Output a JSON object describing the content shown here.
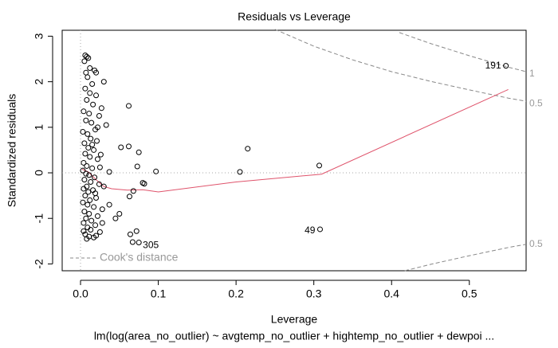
{
  "chart_data": {
    "type": "scatter",
    "title": "Residuals vs Leverage",
    "x_label": "Leverage",
    "y_label": "Standardized residuals",
    "subtitle": "lm(log(area_no_outlier) ~ avgtemp_no_outlier + hightemp_no_outlier + dewpoi ...",
    "xlim": [
      -0.0236,
      0.573
    ],
    "ylim": [
      -2.15,
      3.13
    ],
    "xticks": [
      {
        "value": 0,
        "label": "0.0"
      },
      0.1,
      0.2,
      0.3,
      0.4,
      0.5
    ],
    "yticks": [
      -2,
      -1,
      0,
      1,
      2,
      3
    ],
    "hline": 0,
    "vline": 0,
    "series": [
      {
        "color": "#000000",
        "x": [
          0.006,
          0.008,
          0.01,
          0.005,
          0.012,
          0.007,
          0.018,
          0.009,
          0.015,
          0.006,
          0.012,
          0.02,
          0.008,
          0.016,
          0.004,
          0.011,
          0.024,
          0.007,
          0.014,
          0.019,
          0.003,
          0.009,
          0.013,
          0.021,
          0.005,
          0.01,
          0.017,
          0.006,
          0.012,
          0.022,
          0.004,
          0.008,
          0.015,
          0.025,
          0.003,
          0.007,
          0.011,
          0.018,
          0.005,
          0.013,
          0.024,
          0.008,
          0.004,
          0.016,
          0.01,
          0.006,
          0.02,
          0.012,
          0.003,
          0.009,
          0.017,
          0.028,
          0.005,
          0.011,
          0.022,
          0.007,
          0.014,
          0.004,
          0.019,
          0.009,
          0.013,
          0.025,
          0.006,
          0.011,
          0.017,
          0.008,
          0.02,
          0.004,
          0.015,
          0.019,
          0.026,
          0.03,
          0.033,
          0.028,
          0.062,
          0.052,
          0.062,
          0.075,
          0.073,
          0.097,
          0.205,
          0.215,
          0.307,
          0.08,
          0.082,
          0.063,
          0.068,
          0.072,
          0.064,
          0.067,
          0.05,
          0.045,
          0.037,
          0.037,
          0.03,
          0.027,
          0.02,
          0.022
        ],
        "values": [
          2.58,
          2.55,
          2.52,
          2.45,
          2.3,
          2.2,
          2.25,
          2.1,
          1.95,
          1.85,
          1.75,
          1.7,
          1.6,
          1.5,
          1.35,
          1.3,
          1.25,
          1.15,
          1.1,
          0.95,
          0.9,
          0.85,
          0.75,
          0.7,
          0.65,
          0.55,
          0.5,
          0.42,
          0.35,
          0.3,
          0.22,
          0.15,
          0.1,
          0.12,
          0.05,
          -0.02,
          -0.05,
          -0.1,
          -0.15,
          -0.2,
          -0.25,
          -0.3,
          -0.35,
          -0.38,
          -0.42,
          -0.5,
          -0.55,
          -0.6,
          -0.65,
          -0.7,
          -0.75,
          -0.8,
          -0.85,
          -0.9,
          -0.95,
          -1.0,
          -1.05,
          -1.1,
          -1.15,
          -1.2,
          -1.25,
          -1.3,
          -1.35,
          -1.4,
          -1.42,
          -1.45,
          -1.38,
          -1.28,
          0.62,
          -0.45,
          0.4,
          -0.3,
          1.05,
          -1.1,
          1.47,
          0.56,
          0.58,
          0.45,
          0.14,
          0.03,
          0.02,
          0.53,
          0.16,
          -0.22,
          -0.24,
          -0.52,
          -0.4,
          -1.28,
          -1.35,
          -1.52,
          -0.9,
          -1.0,
          -0.7,
          0.02,
          2.0,
          1.42,
          2.2,
          1.0
        ]
      }
    ],
    "labeled_points": [
      {
        "label": "191",
        "x": 0.547,
        "y": 2.35
      },
      {
        "label": "49",
        "x": 0.308,
        "y": -1.24
      },
      {
        "label": "305",
        "x": 0.075,
        "y": -1.53
      }
    ],
    "smoother": {
      "color": "#df536b",
      "x": [
        0.002,
        0.01,
        0.02,
        0.03,
        0.04,
        0.06,
        0.08,
        0.1,
        0.2,
        0.31,
        0.55
      ],
      "values": [
        0.08,
        0.02,
        -0.15,
        -0.3,
        -0.35,
        -0.38,
        -0.37,
        -0.42,
        -0.2,
        -0.03,
        1.83
      ]
    },
    "cook_legend": "Cook's distance",
    "cook_contours": [
      {
        "label": "1",
        "x": [
          0.41,
          0.45,
          0.5,
          0.55,
          0.573
        ],
        "values": [
          3.08,
          2.84,
          2.57,
          2.32,
          2.22
        ]
      },
      {
        "label": "0.5",
        "x": [
          0.25,
          0.3,
          0.35,
          0.4,
          0.45,
          0.5,
          0.55,
          0.573
        ],
        "values": [
          3.15,
          2.78,
          2.48,
          2.22,
          2.01,
          1.82,
          1.64,
          1.57
        ]
      },
      {
        "label": "0.5",
        "x": [
          0.417,
          0.45,
          0.5,
          0.55,
          0.573
        ],
        "values": [
          -2.15,
          -2.01,
          -1.82,
          -1.64,
          -1.57
        ]
      }
    ]
  }
}
